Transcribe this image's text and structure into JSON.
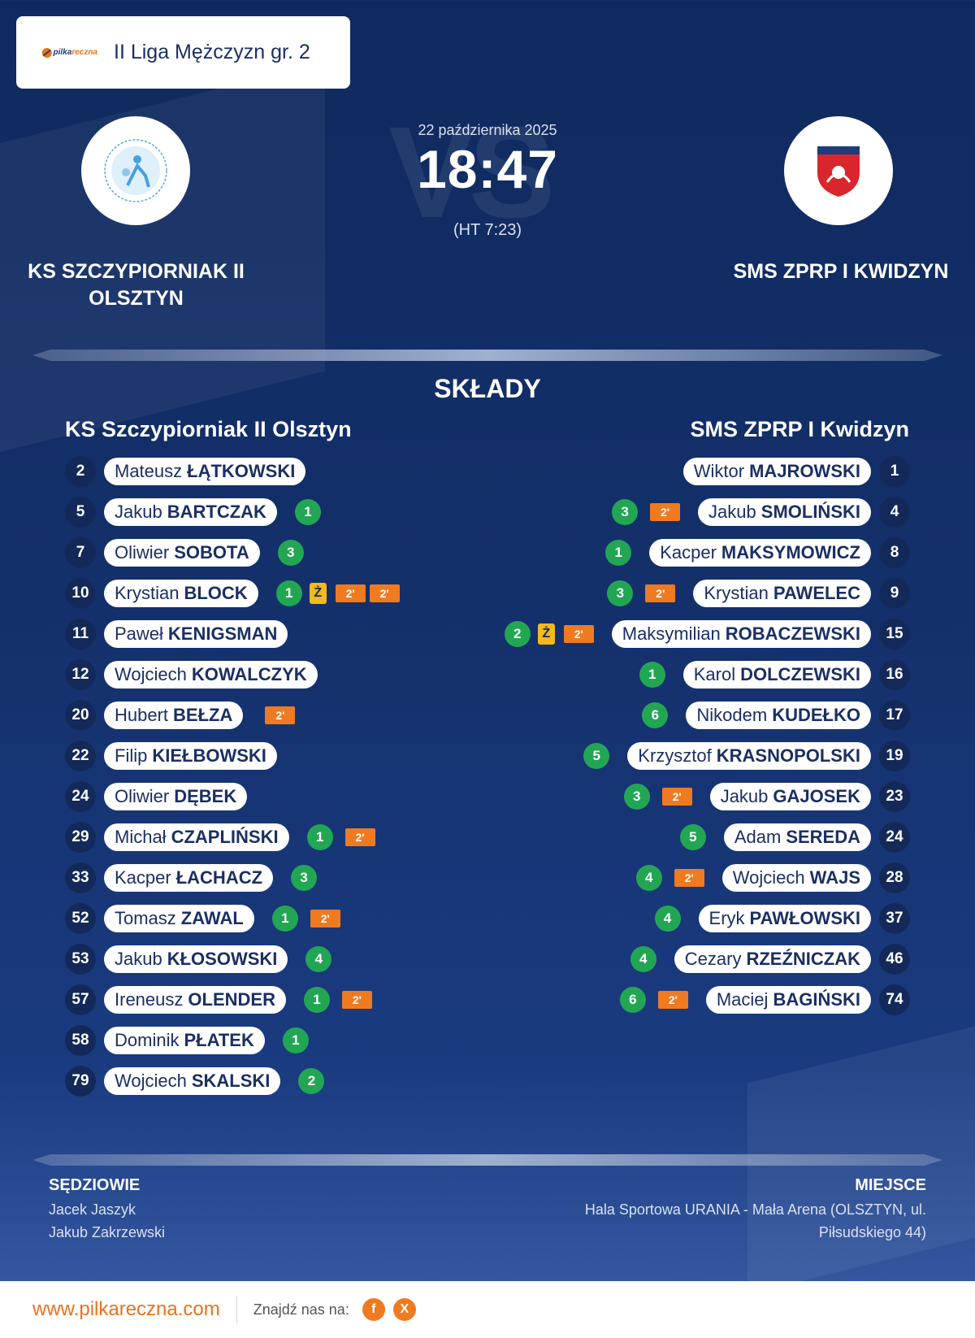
{
  "league": {
    "brand": "pilkareczna.com",
    "title": "II Liga Mężczyzn gr. 2"
  },
  "match": {
    "date": "22 października 2025",
    "score": "18:47",
    "halftime": "(HT 7:23)",
    "vs": "VS"
  },
  "home": {
    "name": "KS SZCZYPIORNIAK II OLSZTYN",
    "squad_title": "KS Szczypiorniak II Olsztyn",
    "players": [
      {
        "num": "2",
        "first": "Mateusz",
        "last": "ŁĄTKOWSKI",
        "badges": []
      },
      {
        "num": "5",
        "first": "Jakub",
        "last": "BARTCZAK",
        "badges": [
          {
            "t": "goal",
            "v": "1"
          }
        ]
      },
      {
        "num": "7",
        "first": "Oliwier",
        "last": "SOBOTA",
        "badges": [
          {
            "t": "goal",
            "v": "3"
          }
        ]
      },
      {
        "num": "10",
        "first": "Krystian",
        "last": "BLOCK",
        "badges": [
          {
            "t": "goal",
            "v": "1"
          },
          {
            "t": "yellow",
            "v": "Ż"
          },
          {
            "t": "susp",
            "v": "2'"
          },
          {
            "t": "susp",
            "v": "2'"
          }
        ]
      },
      {
        "num": "11",
        "first": "Paweł",
        "last": "KENIGSMAN",
        "badges": []
      },
      {
        "num": "12",
        "first": "Wojciech",
        "last": "KOWALCZYK",
        "badges": []
      },
      {
        "num": "20",
        "first": "Hubert",
        "last": "BEŁZA",
        "badges": [
          {
            "t": "susp",
            "v": "2'"
          }
        ]
      },
      {
        "num": "22",
        "first": "Filip",
        "last": "KIEŁBOWSKI",
        "badges": []
      },
      {
        "num": "24",
        "first": "Oliwier",
        "last": "DĘBEK",
        "badges": []
      },
      {
        "num": "29",
        "first": "Michał",
        "last": "CZAPLIŃSKI",
        "badges": [
          {
            "t": "goal",
            "v": "1"
          },
          {
            "t": "susp",
            "v": "2'"
          }
        ]
      },
      {
        "num": "33",
        "first": "Kacper",
        "last": "ŁACHACZ",
        "badges": [
          {
            "t": "goal",
            "v": "3"
          }
        ]
      },
      {
        "num": "52",
        "first": "Tomasz",
        "last": "ZAWAL",
        "badges": [
          {
            "t": "goal",
            "v": "1"
          },
          {
            "t": "susp",
            "v": "2'"
          }
        ]
      },
      {
        "num": "53",
        "first": "Jakub",
        "last": "KŁOSOWSKI",
        "badges": [
          {
            "t": "goal",
            "v": "4"
          }
        ]
      },
      {
        "num": "57",
        "first": "Ireneusz",
        "last": "OLENDER",
        "badges": [
          {
            "t": "goal",
            "v": "1"
          },
          {
            "t": "susp",
            "v": "2'"
          }
        ]
      },
      {
        "num": "58",
        "first": "Dominik",
        "last": "PŁATEK",
        "badges": [
          {
            "t": "goal",
            "v": "1"
          }
        ]
      },
      {
        "num": "79",
        "first": "Wojciech",
        "last": "SKALSKI",
        "badges": [
          {
            "t": "goal",
            "v": "2"
          }
        ]
      }
    ]
  },
  "away": {
    "name": "SMS ZPRP I KWIDZYN",
    "squad_title": "SMS ZPRP I Kwidzyn",
    "players": [
      {
        "num": "1",
        "first": "Wiktor",
        "last": "MAJROWSKI",
        "badges": []
      },
      {
        "num": "4",
        "first": "Jakub",
        "last": "SMOLIŃSKI",
        "badges": [
          {
            "t": "goal",
            "v": "3"
          },
          {
            "t": "susp",
            "v": "2'"
          }
        ]
      },
      {
        "num": "8",
        "first": "Kacper",
        "last": "MAKSYMOWICZ",
        "badges": [
          {
            "t": "goal",
            "v": "1"
          }
        ]
      },
      {
        "num": "9",
        "first": "Krystian",
        "last": "PAWELEC",
        "badges": [
          {
            "t": "goal",
            "v": "3"
          },
          {
            "t": "susp",
            "v": "2'"
          }
        ]
      },
      {
        "num": "15",
        "first": "Maksymilian",
        "last": "ROBACZEWSKI",
        "badges": [
          {
            "t": "goal",
            "v": "2"
          },
          {
            "t": "yellow",
            "v": "Ż"
          },
          {
            "t": "susp",
            "v": "2'"
          }
        ]
      },
      {
        "num": "16",
        "first": "Karol",
        "last": "DOLCZEWSKI",
        "badges": [
          {
            "t": "goal",
            "v": "1"
          }
        ]
      },
      {
        "num": "17",
        "first": "Nikodem",
        "last": "KUDEŁKO",
        "badges": [
          {
            "t": "goal",
            "v": "6"
          }
        ]
      },
      {
        "num": "19",
        "first": "Krzysztof",
        "last": "KRASNOPOLSKI",
        "badges": [
          {
            "t": "goal",
            "v": "5"
          }
        ]
      },
      {
        "num": "23",
        "first": "Jakub",
        "last": "GAJOSEK",
        "badges": [
          {
            "t": "goal",
            "v": "3"
          },
          {
            "t": "susp",
            "v": "2'"
          }
        ]
      },
      {
        "num": "24",
        "first": "Adam",
        "last": "SEREDA",
        "badges": [
          {
            "t": "goal",
            "v": "5"
          }
        ]
      },
      {
        "num": "28",
        "first": "Wojciech",
        "last": "WAJS",
        "badges": [
          {
            "t": "goal",
            "v": "4"
          },
          {
            "t": "susp",
            "v": "2'"
          }
        ]
      },
      {
        "num": "37",
        "first": "Eryk",
        "last": "PAWŁOWSKI",
        "badges": [
          {
            "t": "goal",
            "v": "4"
          }
        ]
      },
      {
        "num": "46",
        "first": "Cezary",
        "last": "RZEŹNICZAK",
        "badges": [
          {
            "t": "goal",
            "v": "4"
          }
        ]
      },
      {
        "num": "74",
        "first": "Maciej",
        "last": "BAGIŃSKI",
        "badges": [
          {
            "t": "goal",
            "v": "6"
          },
          {
            "t": "susp",
            "v": "2'"
          }
        ]
      }
    ]
  },
  "section_title": "SKŁADY",
  "referees": {
    "label": "SĘDZIOWIE",
    "names": [
      "Jacek Jaszyk",
      "Jakub Zakrzewski"
    ]
  },
  "venue": {
    "label": "MIEJSCE",
    "text": "Hala Sportowa URANIA - Mała Arena (OLSZTYN, ul. Piłsudskiego 44)"
  },
  "footer": {
    "site": "www.pilkareczna.com",
    "find": "Znajdź nas na:",
    "icons": [
      "facebook-icon",
      "x-icon"
    ],
    "f": "f",
    "x": "X"
  },
  "colors": {
    "goal": "#22a653",
    "yellow": "#f4b91a",
    "suspension": "#f07a1f",
    "accent": "#e8731c"
  }
}
